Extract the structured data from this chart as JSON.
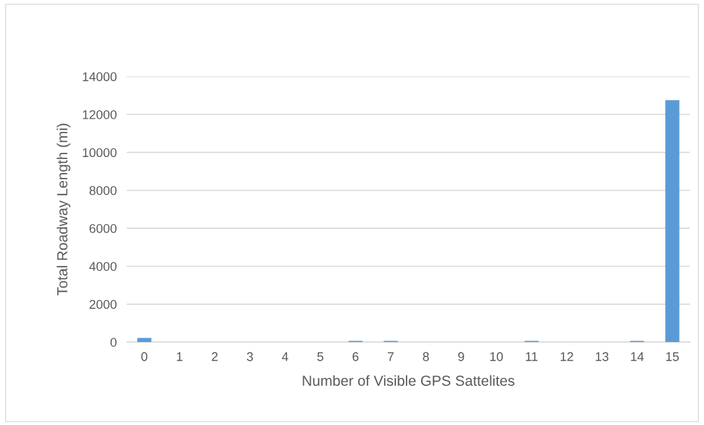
{
  "chart_data": {
    "type": "bar",
    "xlabel": "Number of Visible GPS Sattelites",
    "ylabel": "Total Roadway Length (mi)",
    "categories": [
      "0",
      "1",
      "2",
      "3",
      "4",
      "5",
      "6",
      "7",
      "8",
      "9",
      "10",
      "11",
      "12",
      "13",
      "14",
      "15"
    ],
    "values": [
      220,
      0,
      0,
      0,
      0,
      0,
      60,
      60,
      0,
      0,
      0,
      60,
      0,
      0,
      60,
      12750
    ],
    "color": "#5b9bd5",
    "ylim": [
      0,
      14000
    ],
    "yticks": [
      0,
      2000,
      4000,
      6000,
      8000,
      10000,
      12000,
      14000
    ],
    "grid": "y",
    "legend": false
  }
}
